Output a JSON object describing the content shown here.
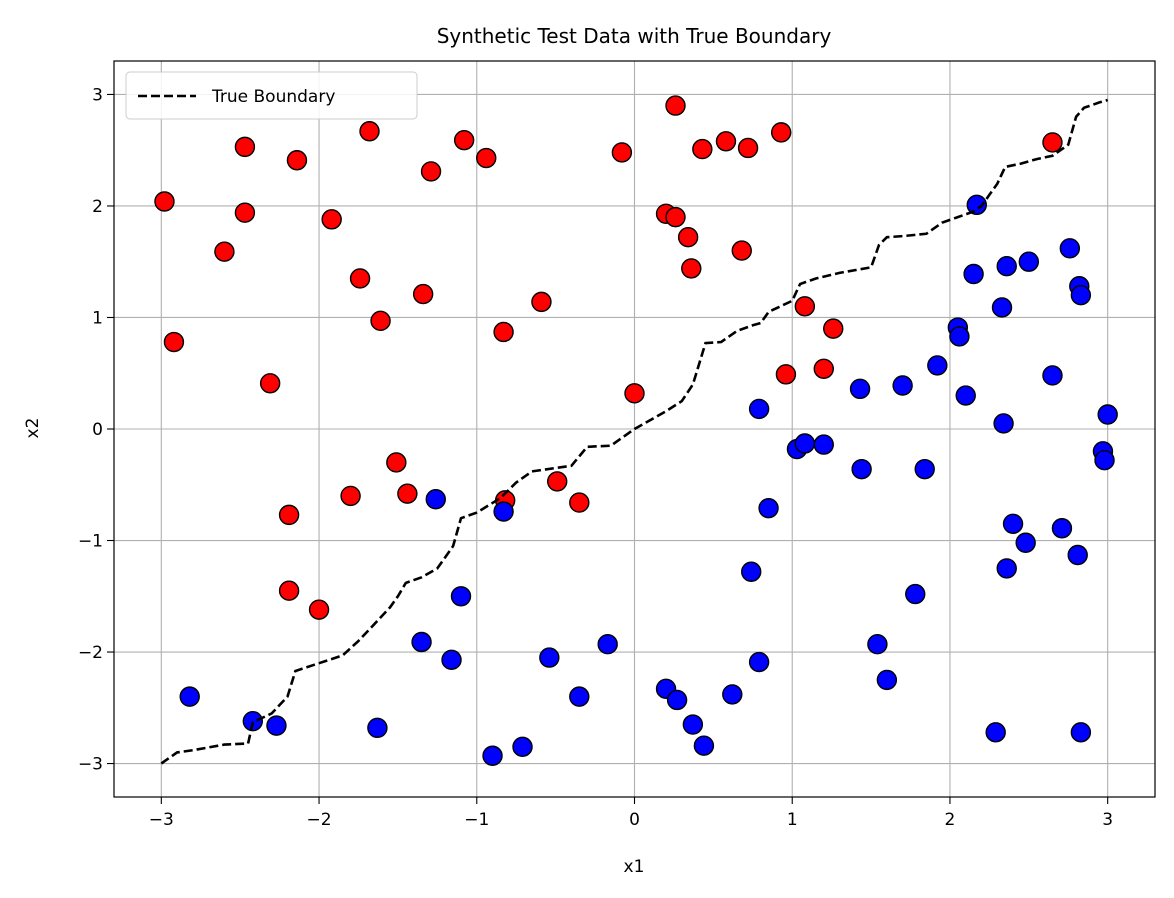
{
  "chart_data": {
    "type": "scatter",
    "title": "Synthetic Test Data with True Boundary",
    "xlabel": "x1",
    "ylabel": "x2",
    "xlim": [
      -3.3,
      3.3
    ],
    "ylim": [
      -3.3,
      3.3
    ],
    "xticks": [
      -3,
      -2,
      -1,
      0,
      1,
      2,
      3
    ],
    "yticks": [
      -3,
      -2,
      -1,
      0,
      1,
      2,
      3
    ],
    "xtick_labels": [
      "−3",
      "−2",
      "−1",
      "0",
      "1",
      "2",
      "3"
    ],
    "ytick_labels": [
      "−3",
      "−2",
      "−1",
      "0",
      "1",
      "2",
      "3"
    ],
    "grid": true,
    "legend": {
      "position": "top-left",
      "entries": [
        "True Boundary"
      ]
    },
    "colors": {
      "class_red": "#ff0000",
      "class_blue": "#0000ff",
      "boundary": "#000000",
      "grid": "#b0b0b0",
      "edge": "#000000"
    },
    "boundary": {
      "name": "True Boundary",
      "x": [
        -3.0,
        -2.9,
        -2.8,
        -2.6,
        -2.45,
        -2.42,
        -2.3,
        -2.2,
        -2.15,
        -2.0,
        -1.85,
        -1.75,
        -1.65,
        -1.55,
        -1.5,
        -1.45,
        -1.35,
        -1.25,
        -1.15,
        -1.1,
        -1.0,
        -0.85,
        -0.75,
        -0.65,
        -0.5,
        -0.4,
        -0.3,
        -0.15,
        0.0,
        0.1,
        0.2,
        0.3,
        0.37,
        0.45,
        0.55,
        0.65,
        0.75,
        0.8,
        0.85,
        1.0,
        1.05,
        1.15,
        1.3,
        1.5,
        1.55,
        1.6,
        1.7,
        1.85,
        1.95,
        2.05,
        2.15,
        2.2,
        2.25,
        2.3,
        2.35,
        2.45,
        2.55,
        2.65,
        2.75,
        2.8,
        2.85,
        2.95,
        3.0
      ],
      "y": [
        -3.0,
        -2.9,
        -2.88,
        -2.83,
        -2.82,
        -2.63,
        -2.55,
        -2.4,
        -2.17,
        -2.1,
        -2.03,
        -1.9,
        -1.75,
        -1.6,
        -1.5,
        -1.38,
        -1.33,
        -1.25,
        -1.05,
        -0.8,
        -0.75,
        -0.62,
        -0.48,
        -0.38,
        -0.35,
        -0.33,
        -0.16,
        -0.15,
        0.0,
        0.08,
        0.16,
        0.25,
        0.4,
        0.77,
        0.78,
        0.88,
        0.93,
        0.95,
        1.05,
        1.15,
        1.3,
        1.35,
        1.4,
        1.45,
        1.65,
        1.72,
        1.73,
        1.75,
        1.85,
        1.9,
        1.95,
        2.0,
        2.1,
        2.2,
        2.35,
        2.38,
        2.42,
        2.45,
        2.55,
        2.8,
        2.88,
        2.93,
        2.95
      ]
    },
    "series": [
      {
        "class": "red",
        "x": [
          -2.98,
          -2.92,
          -2.6,
          -2.47,
          -2.47,
          -2.31,
          -2.19,
          -2.19,
          -2.14,
          -2.0,
          -1.92,
          -1.8,
          -1.74,
          -1.68,
          -1.61,
          -1.51,
          -1.44,
          -1.34,
          -1.29,
          -1.08,
          -0.94,
          -0.83,
          -0.82,
          -0.59,
          -0.49,
          -0.35,
          -0.08,
          0.0,
          0.2,
          0.26,
          0.26,
          0.34,
          0.36,
          0.43,
          0.58,
          0.68,
          0.72,
          0.93,
          0.96,
          1.08,
          1.2,
          1.26,
          2.65
        ],
        "y": [
          2.04,
          0.78,
          1.59,
          2.53,
          1.94,
          0.41,
          -0.77,
          -1.45,
          2.41,
          -1.62,
          1.88,
          -0.6,
          1.35,
          2.67,
          0.97,
          -0.3,
          -0.58,
          1.21,
          2.31,
          2.59,
          2.43,
          0.87,
          -0.64,
          1.14,
          -0.47,
          -0.66,
          2.48,
          0.32,
          1.93,
          1.9,
          2.9,
          1.72,
          1.44,
          2.51,
          2.58,
          1.6,
          2.52,
          2.66,
          0.49,
          1.1,
          0.54,
          0.9,
          2.57
        ]
      },
      {
        "class": "blue",
        "x": [
          -2.82,
          -2.42,
          -2.27,
          -1.63,
          -1.35,
          -1.26,
          -1.16,
          -1.1,
          -0.9,
          -0.83,
          -0.71,
          -0.54,
          -0.35,
          -0.17,
          0.2,
          0.27,
          0.37,
          0.44,
          0.62,
          0.74,
          0.79,
          0.79,
          0.85,
          1.03,
          1.08,
          1.2,
          1.43,
          1.44,
          1.54,
          1.6,
          1.7,
          1.78,
          1.84,
          1.92,
          2.05,
          2.06,
          2.1,
          2.15,
          2.17,
          2.29,
          2.33,
          2.34,
          2.36,
          2.36,
          2.4,
          2.48,
          2.5,
          2.65,
          2.71,
          2.76,
          2.81,
          2.82,
          2.83,
          2.83,
          2.97,
          2.98,
          3.0
        ],
        "y": [
          -2.4,
          -2.62,
          -2.66,
          -2.68,
          -1.91,
          -0.63,
          -2.07,
          -1.5,
          -2.93,
          -0.74,
          -2.85,
          -2.05,
          -2.4,
          -1.93,
          -2.33,
          -2.43,
          -2.65,
          -2.84,
          -2.38,
          -1.28,
          0.18,
          -2.09,
          -0.71,
          -0.18,
          -0.13,
          -0.14,
          0.36,
          -0.36,
          -1.93,
          -2.25,
          0.39,
          -1.48,
          -0.36,
          0.57,
          0.91,
          0.83,
          0.3,
          1.39,
          2.01,
          -2.72,
          1.09,
          0.05,
          1.46,
          -1.25,
          -0.85,
          -1.02,
          1.5,
          0.48,
          -0.89,
          1.62,
          -1.13,
          1.28,
          -2.72,
          1.2,
          -0.2,
          -0.28,
          0.13
        ]
      }
    ]
  }
}
